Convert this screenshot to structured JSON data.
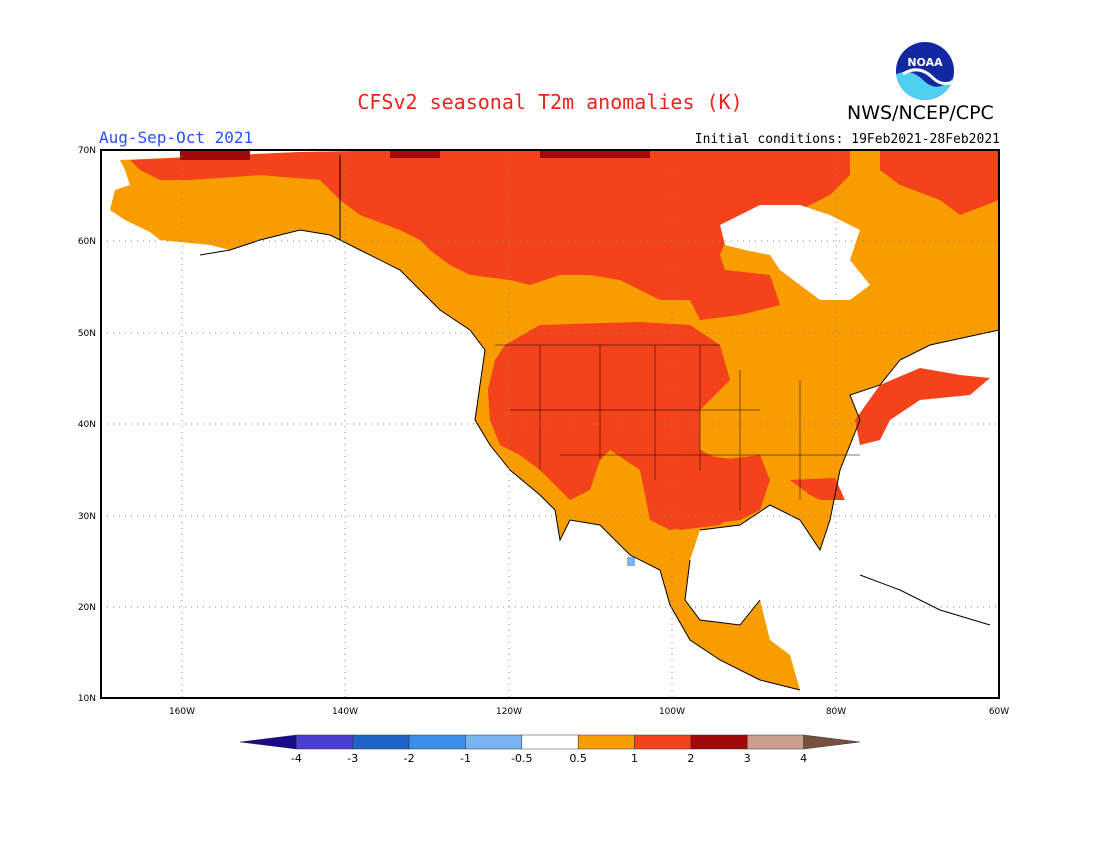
{
  "title": "CFSv2 seasonal T2m anomalies (K)",
  "agency": "NWS/NCEP/CPC",
  "logo_text": "NOAA",
  "season": "Aug-Sep-Oct 2021",
  "initial_conditions": "Initial conditions: 19Feb2021-28Feb2021",
  "lat_labels": [
    "70N",
    "60N",
    "50N",
    "40N",
    "30N",
    "20N",
    "10N"
  ],
  "lon_labels": [
    "160W",
    "140W",
    "120W",
    "100W",
    "80W",
    "60W"
  ],
  "colorbar": {
    "ticks": [
      "-4",
      "-3",
      "-2",
      "-1",
      "-0.5",
      "0.5",
      "1",
      "2",
      "3",
      "4"
    ],
    "colors": [
      "#1a0a8c",
      "#4a3fd0",
      "#1e64c8",
      "#3c8ee8",
      "#78b4f0",
      "#ffffff",
      "#f89c00",
      "#f4421a",
      "#a00a0a",
      "#c8a08c",
      "#785040"
    ]
  },
  "colors": {
    "weak_warm": "#f89c00",
    "moderate_warm": "#f4421a",
    "strong_warm": "#a00a0a",
    "weak_cool": "#78b4f0"
  }
}
